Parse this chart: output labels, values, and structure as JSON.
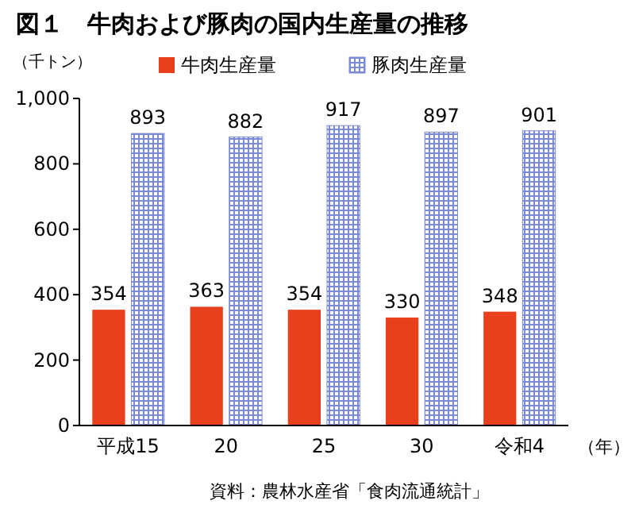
{
  "chart_data": {
    "type": "bar",
    "title": "図１　牛肉および豚肉の国内生産量の推移",
    "ylabel": "（千トン）",
    "xlabel": "（年）",
    "categories": [
      "平成15",
      "20",
      "25",
      "30",
      "令和4"
    ],
    "series": [
      {
        "name": "牛肉生産量",
        "color": "#e8401c",
        "values": [
          354,
          363,
          354,
          330,
          348
        ]
      },
      {
        "name": "豚肉生産量",
        "color": "#7a8ad8",
        "values": [
          893,
          882,
          917,
          897,
          901
        ]
      }
    ],
    "ylim": [
      0,
      1000
    ],
    "yticks": [
      0,
      200,
      400,
      600,
      800,
      {
        "value": 1000,
        "label": "1,000"
      }
    ],
    "data_labels": true,
    "legend": "top",
    "grid": false,
    "annotations": [
      "資料：農林水産省「食肉流通統計」"
    ]
  }
}
